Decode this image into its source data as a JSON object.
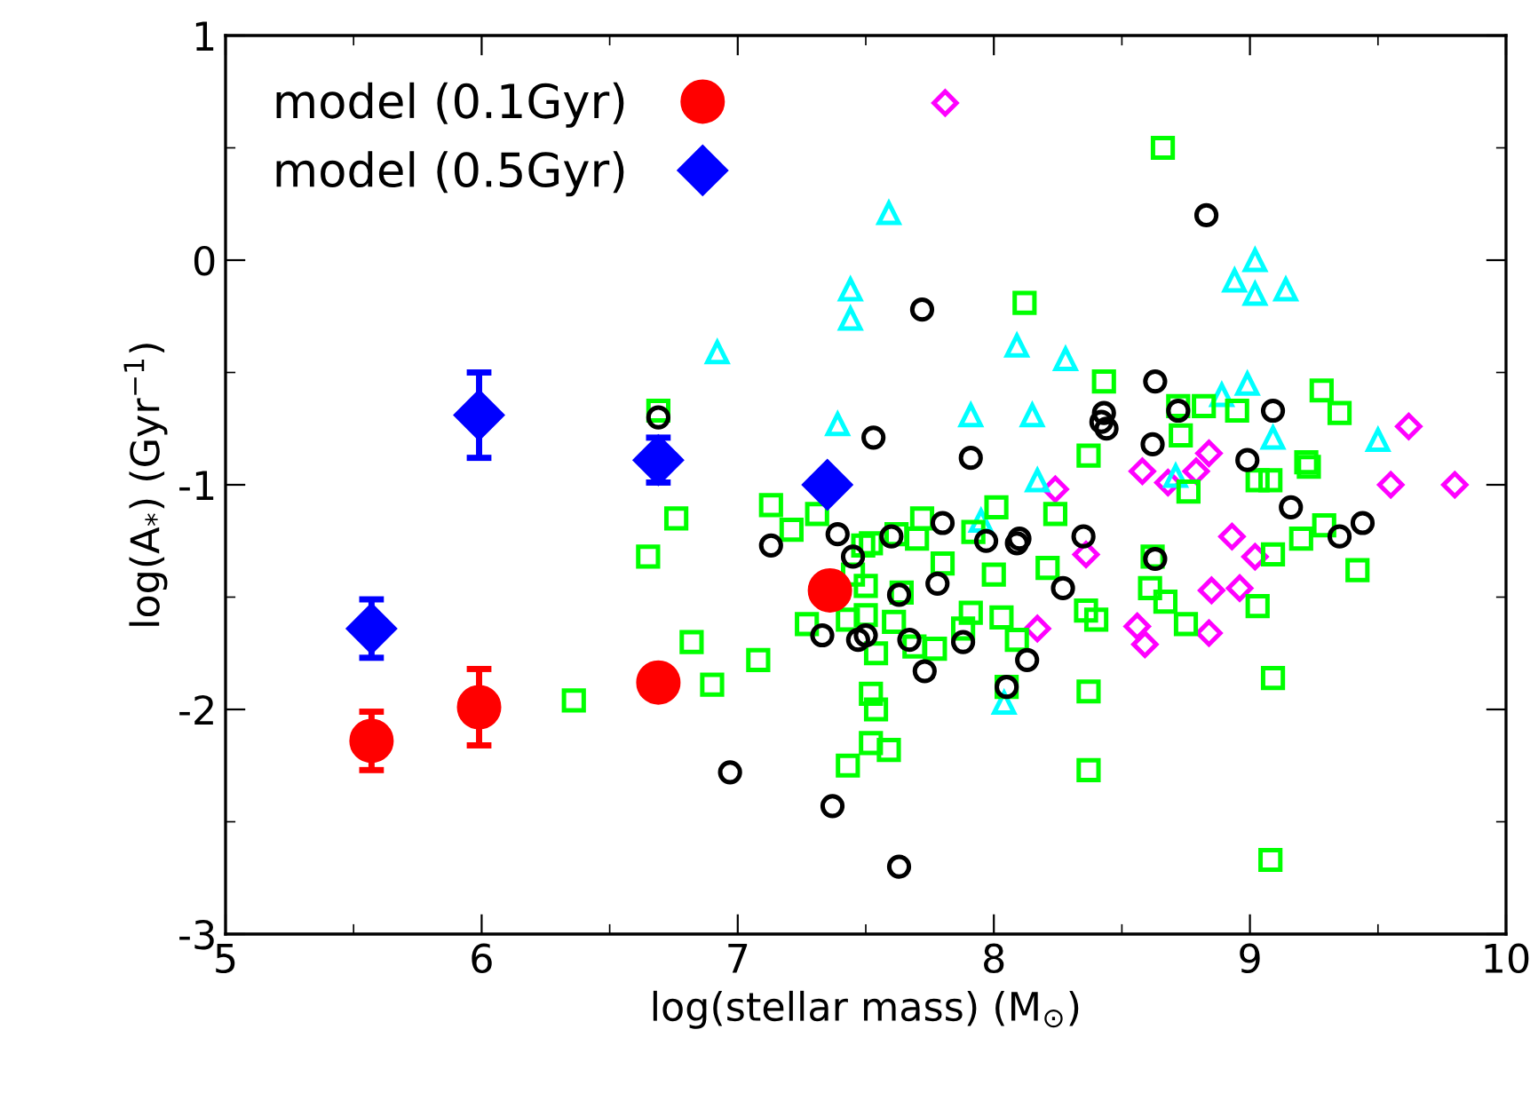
{
  "chart_data": {
    "type": "scatter",
    "xlabel": "log(stellar mass) (M$_{⊙}$)",
    "ylabel": "log(A$_{*}$) (Gyr$^{−1}$)",
    "xlim": [
      5,
      10
    ],
    "ylim": [
      -3,
      1
    ],
    "xticks": [
      5,
      6,
      7,
      8,
      9,
      10
    ],
    "yticks": [
      -3,
      -2,
      -1,
      0,
      1
    ],
    "grid": false,
    "legend": "top left",
    "series": [
      {
        "color": "#000000",
        "marker": "circle",
        "x": [
          6.69,
          7.72,
          8.83,
          7.53,
          7.91,
          8.63,
          8.43,
          8.42,
          8.44,
          8.62,
          8.72,
          8.99,
          9.09,
          9.16,
          9.44,
          9.35,
          7.8,
          7.6,
          7.97,
          8.1,
          8.09,
          8.35,
          8.63,
          7.78,
          7.63,
          8.27,
          7.88,
          8.13,
          7.73,
          7.67,
          8.05,
          7.63,
          7.5,
          7.13,
          7.39,
          7.45,
          7.33,
          7.47,
          6.97,
          7.37
        ],
        "values": [
          -0.7,
          -0.22,
          0.2,
          -0.79,
          -0.88,
          -0.54,
          -0.68,
          -0.72,
          -0.75,
          -0.82,
          -0.67,
          -0.89,
          -0.67,
          -1.1,
          -1.17,
          -1.23,
          -1.17,
          -1.23,
          -1.25,
          -1.24,
          -1.26,
          -1.23,
          -1.33,
          -1.44,
          -1.49,
          -1.46,
          -1.7,
          -1.78,
          -1.83,
          -1.69,
          -1.9,
          -2.7,
          -1.67,
          -1.27,
          -1.22,
          -1.32,
          -1.67,
          -1.69,
          -2.28,
          -2.43
        ]
      },
      {
        "color": "#00ff00",
        "marker": "square",
        "x": [
          6.69,
          8.66,
          8.12,
          8.43,
          8.72,
          8.82,
          8.95,
          9.28,
          9.35,
          8.73,
          8.37,
          9.22,
          9.03,
          9.08,
          8.76,
          8.24,
          8.01,
          7.72,
          7.62,
          7.7,
          7.52,
          7.92,
          7.8,
          8.0,
          8.21,
          7.64,
          7.5,
          7.61,
          7.5,
          7.91,
          7.88,
          8.03,
          8.09,
          7.69,
          7.77,
          7.54,
          8.36,
          8.4,
          8.62,
          8.61,
          8.67,
          8.75,
          9.03,
          9.09,
          9.2,
          9.29,
          9.42,
          8.05,
          8.37,
          9.09,
          8.37,
          9.08,
          7.52,
          7.54,
          7.52,
          7.59,
          9.23,
          6.76,
          6.65,
          7.13,
          7.21,
          7.31,
          7.49,
          7.27,
          7.43,
          7.45,
          6.82,
          6.9,
          7.08,
          6.36,
          7.43
        ],
        "values": [
          -0.67,
          0.5,
          -0.19,
          -0.54,
          -0.65,
          -0.65,
          -0.67,
          -0.58,
          -0.68,
          -0.78,
          -0.87,
          -0.9,
          -0.98,
          -0.98,
          -1.03,
          -1.13,
          -1.1,
          -1.15,
          -1.22,
          -1.24,
          -1.26,
          -1.21,
          -1.35,
          -1.4,
          -1.37,
          -1.48,
          -1.45,
          -1.61,
          -1.58,
          -1.57,
          -1.64,
          -1.59,
          -1.69,
          -1.72,
          -1.73,
          -1.75,
          -1.56,
          -1.6,
          -1.32,
          -1.46,
          -1.52,
          -1.62,
          -1.54,
          -1.31,
          -1.24,
          -1.18,
          -1.38,
          -1.9,
          -1.92,
          -1.86,
          -2.27,
          -2.67,
          -1.93,
          -2.0,
          -2.15,
          -2.18,
          -0.92,
          -1.15,
          -1.32,
          -1.09,
          -1.2,
          -1.13,
          -1.27,
          -1.62,
          -1.6,
          -1.4,
          -1.7,
          -1.89,
          -1.78,
          -1.96,
          -2.25
        ]
      },
      {
        "color": "#00ffff",
        "marker": "triangle",
        "x": [
          6.92,
          7.39,
          7.44,
          7.44,
          7.59,
          7.91,
          7.95,
          8.04,
          8.09,
          8.15,
          8.17,
          8.28,
          8.71,
          8.89,
          8.94,
          8.99,
          9.02,
          9.02,
          9.09,
          9.14,
          9.5
        ],
        "values": [
          -0.41,
          -0.73,
          -0.13,
          -0.26,
          0.21,
          -0.69,
          -1.16,
          -1.97,
          -0.38,
          -0.69,
          -0.98,
          -0.44,
          -0.96,
          -0.6,
          -0.09,
          -0.55,
          0.0,
          -0.15,
          -0.79,
          -0.13,
          -0.8
        ]
      },
      {
        "color": "#ff00ff",
        "marker": "diamond",
        "x": [
          7.81,
          8.24,
          8.58,
          8.68,
          8.79,
          8.84,
          9.62,
          9.55,
          9.8,
          8.36,
          8.17,
          8.56,
          8.59,
          8.85,
          8.96,
          8.84,
          8.93,
          9.02
        ],
        "values": [
          0.7,
          -1.02,
          -0.94,
          -0.99,
          -0.94,
          -0.86,
          -0.74,
          -1.0,
          -1.0,
          -1.31,
          -1.64,
          -1.63,
          -1.71,
          -1.47,
          -1.46,
          -1.66,
          -1.23,
          -1.32
        ]
      },
      {
        "name": "model (0.1Gyr)",
        "color": "#ff0000",
        "marker": "circle",
        "x": [
          5.57,
          5.99,
          6.69,
          7.36
        ],
        "values": [
          -2.14,
          -1.99,
          -1.88,
          -1.47
        ],
        "errors": [
          0.13,
          0.17,
          null,
          null
        ]
      },
      {
        "name": "model (0.5Gyr)",
        "color": "#0000ff",
        "marker": "diamond",
        "x": [
          5.57,
          5.99,
          6.69,
          7.35
        ],
        "values": [
          -1.64,
          -0.69,
          -0.89,
          -1.0
        ],
        "errors": [
          0.13,
          0.19,
          0.1,
          null
        ]
      }
    ]
  }
}
